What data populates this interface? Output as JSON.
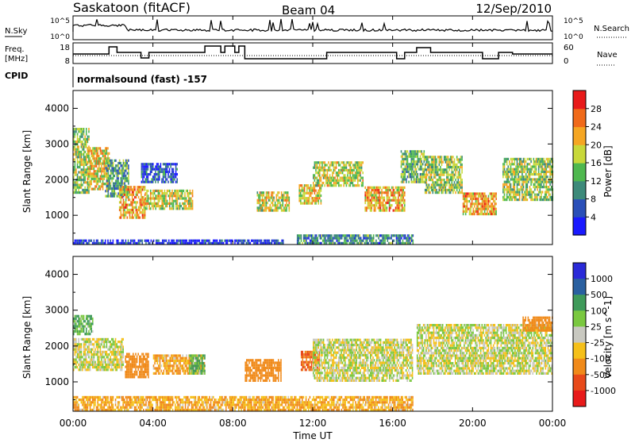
{
  "header": {
    "station": "Saskatoon (fitACF)",
    "beam": "Beam 04",
    "date": "12/Sep/2010",
    "cpid_label": "CPID",
    "cpid_value": "normalsound (fast) -157"
  },
  "strip_labels": {
    "n_sky": "N.Sky",
    "n_search": "N.Search",
    "freq_line1": "Freq.",
    "freq_line2": "[MHz]",
    "nave": "Nave",
    "noise_ticks_left": [
      "10^5",
      "10^0"
    ],
    "noise_ticks_right": [
      "10^5",
      "10^0"
    ],
    "freq_ticks": [
      "18",
      "8"
    ],
    "nave_ticks": [
      "60",
      "0"
    ]
  },
  "chart_data": [
    {
      "type": "heatmap",
      "panel": "power",
      "ylabel": "Slant Range [km]",
      "ylim": [
        180,
        4500
      ],
      "xlim": [
        0,
        24
      ],
      "yticks": [
        1000,
        2000,
        3000,
        4000
      ],
      "colorbar": {
        "label": "Power [dB]",
        "ticks": [
          "4",
          "8",
          "12",
          "16",
          "20",
          "24",
          "28"
        ],
        "colors": [
          "#1a1aff",
          "#2a4fb8",
          "#3d8a7a",
          "#4fb84f",
          "#c8d83a",
          "#f5a623",
          "#f06a1a",
          "#e81a1a"
        ]
      },
      "patches": [
        {
          "t0": 0.0,
          "t1": 0.8,
          "r0": 1600,
          "r1": 3400,
          "v": 18
        },
        {
          "t0": 0.7,
          "t1": 1.8,
          "r0": 1700,
          "r1": 2900,
          "v": 22
        },
        {
          "t0": 1.6,
          "t1": 2.8,
          "r0": 1500,
          "r1": 2500,
          "v": 14
        },
        {
          "t0": 2.3,
          "t1": 3.6,
          "r0": 900,
          "r1": 1800,
          "v": 24
        },
        {
          "t0": 3.6,
          "t1": 6.0,
          "r0": 1150,
          "r1": 1700,
          "v": 20
        },
        {
          "t0": 3.4,
          "t1": 5.2,
          "r0": 1900,
          "r1": 2400,
          "v": 8
        },
        {
          "t0": 9.2,
          "t1": 10.8,
          "r0": 1100,
          "r1": 1600,
          "v": 20
        },
        {
          "t0": 11.3,
          "t1": 12.4,
          "r0": 1300,
          "r1": 1800,
          "v": 22
        },
        {
          "t0": 12.0,
          "t1": 14.5,
          "r0": 1800,
          "r1": 2500,
          "v": 20
        },
        {
          "t0": 14.6,
          "t1": 16.6,
          "r0": 1100,
          "r1": 1800,
          "v": 24
        },
        {
          "t0": 16.4,
          "t1": 17.6,
          "r0": 1900,
          "r1": 2800,
          "v": 16
        },
        {
          "t0": 17.6,
          "t1": 19.5,
          "r0": 1600,
          "r1": 2600,
          "v": 18
        },
        {
          "t0": 19.5,
          "t1": 21.2,
          "r0": 1000,
          "r1": 1600,
          "v": 24
        },
        {
          "t0": 21.5,
          "t1": 24.0,
          "r0": 1400,
          "r1": 2600,
          "v": 18
        },
        {
          "t0": 11.2,
          "t1": 17.0,
          "r0": 180,
          "r1": 450,
          "v": 12
        },
        {
          "t0": 0.0,
          "t1": 10.5,
          "r0": 180,
          "r1": 320,
          "v": 6
        }
      ]
    },
    {
      "type": "heatmap",
      "panel": "velocity",
      "ylabel": "Slant Range [km]",
      "ylim": [
        180,
        4500
      ],
      "xlim": [
        0,
        24
      ],
      "yticks": [
        1000,
        2000,
        3000,
        4000
      ],
      "colorbar": {
        "label": "Velocity [m s^-1]",
        "ticks": [
          "1000",
          "500",
          "100",
          "25",
          "-25",
          "-100",
          "-500",
          "-1000"
        ],
        "colors": [
          "#2a2ad8",
          "#2a60a0",
          "#3f9a5a",
          "#7ac83f",
          "#c8c8c0",
          "#f5c01a",
          "#f08a1a",
          "#e84a1a",
          "#e81a1a"
        ]
      },
      "patches": [
        {
          "t0": 0.0,
          "t1": 1.0,
          "r0": 2300,
          "r1": 2800,
          "v": 100
        },
        {
          "t0": 0.0,
          "t1": 2.5,
          "r0": 1300,
          "r1": 2200,
          "v": 0
        },
        {
          "t0": 2.6,
          "t1": 3.8,
          "r0": 1100,
          "r1": 1800,
          "v": -300
        },
        {
          "t0": 4.0,
          "t1": 6.6,
          "r0": 1200,
          "r1": 1700,
          "v": -100
        },
        {
          "t0": 5.8,
          "t1": 6.6,
          "r0": 1200,
          "r1": 1700,
          "v": 100
        },
        {
          "t0": 8.6,
          "t1": 10.4,
          "r0": 1000,
          "r1": 1600,
          "v": -300
        },
        {
          "t0": 11.4,
          "t1": 12.3,
          "r0": 1300,
          "r1": 1800,
          "v": -500
        },
        {
          "t0": 12.0,
          "t1": 17.0,
          "r0": 1000,
          "r1": 2200,
          "v": 0
        },
        {
          "t0": 17.2,
          "t1": 24.0,
          "r0": 1200,
          "r1": 2600,
          "v": 0
        },
        {
          "t0": 22.5,
          "t1": 24.0,
          "r0": 2400,
          "r1": 2800,
          "v": -300
        },
        {
          "t0": 0.0,
          "t1": 17.0,
          "r0": 180,
          "r1": 600,
          "v": -100
        }
      ]
    }
  ],
  "xaxis": {
    "ticks": [
      "00:00",
      "04:00",
      "08:00",
      "12:00",
      "16:00",
      "20:00",
      "00:00"
    ],
    "label": "Time UT"
  }
}
